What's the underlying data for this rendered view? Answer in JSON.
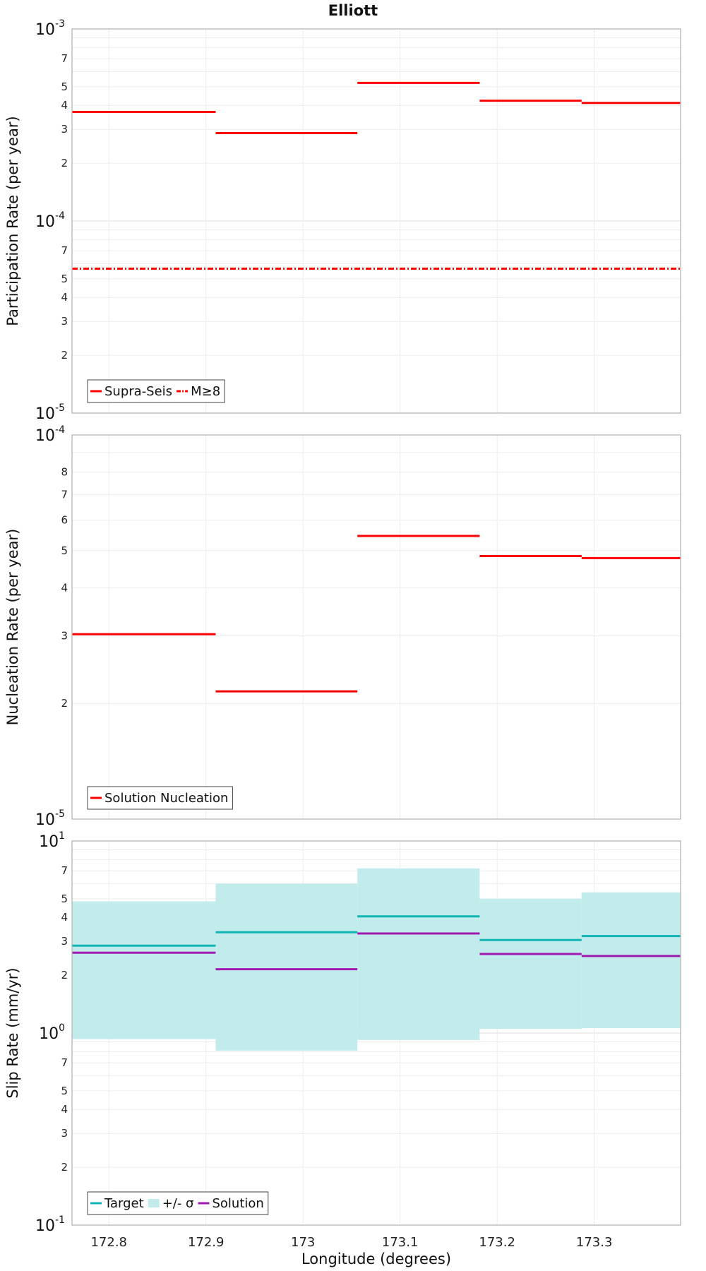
{
  "title": "Elliott",
  "xlabel": "Longitude (degrees)",
  "xlim": [
    172.762,
    173.389
  ],
  "xticks": [
    "172.8",
    "172.9",
    "173",
    "173.1",
    "173.2",
    "173.3"
  ],
  "chart_data": [
    {
      "type": "line",
      "ylabel": "Participation Rate (per year)",
      "yscale": "log",
      "ylim": [
        1e-05,
        0.001
      ],
      "grid": true,
      "legend_position": "bottom-left",
      "series": [
        {
          "name": "Supra-Seis",
          "color": "#ff0000",
          "style": "solid-step",
          "segments": [
            {
              "x": [
                172.762,
                172.91
              ],
              "y": 0.00037
            },
            {
              "x": [
                172.91,
                173.056
              ],
              "y": 0.000287
            },
            {
              "x": [
                173.056,
                173.182
              ],
              "y": 0.000524
            },
            {
              "x": [
                173.182,
                173.287
              ],
              "y": 0.000423
            },
            {
              "x": [
                173.287,
                173.389
              ],
              "y": 0.000412
            }
          ]
        },
        {
          "name": "M≥8",
          "color": "#ff0000",
          "style": "dash-dot",
          "segments": [
            {
              "x": [
                172.762,
                173.389
              ],
              "y": 5.65e-05
            }
          ]
        }
      ]
    },
    {
      "type": "line",
      "ylabel": "Nucleation Rate (per year)",
      "yscale": "log",
      "ylim": [
        1e-05,
        0.0001
      ],
      "grid": true,
      "legend_position": "bottom-left",
      "series": [
        {
          "name": "Solution Nucleation",
          "color": "#ff0000",
          "style": "solid-step",
          "segments": [
            {
              "x": [
                172.762,
                172.91
              ],
              "y": 3.03e-05
            },
            {
              "x": [
                172.91,
                173.056
              ],
              "y": 2.15e-05
            },
            {
              "x": [
                173.056,
                173.182
              ],
              "y": 5.46e-05
            },
            {
              "x": [
                173.182,
                173.287
              ],
              "y": 4.84e-05
            },
            {
              "x": [
                173.287,
                173.389
              ],
              "y": 4.78e-05
            }
          ]
        }
      ]
    },
    {
      "type": "line",
      "ylabel": "Slip Rate (mm/yr)",
      "yscale": "log",
      "ylim": [
        0.1,
        10
      ],
      "grid": true,
      "legend_position": "bottom-left",
      "band": {
        "name": "+/- σ",
        "color": "#c2ecec",
        "segments": [
          {
            "x": [
              172.762,
              172.91
            ],
            "lo": 0.93,
            "hi": 4.85
          },
          {
            "x": [
              172.91,
              173.056
            ],
            "lo": 0.81,
            "hi": 6.0
          },
          {
            "x": [
              173.056,
              173.182
            ],
            "lo": 0.92,
            "hi": 7.2
          },
          {
            "x": [
              173.182,
              173.287
            ],
            "lo": 1.05,
            "hi": 5.0
          },
          {
            "x": [
              173.287,
              173.389
            ],
            "lo": 1.06,
            "hi": 5.4
          }
        ]
      },
      "series": [
        {
          "name": "Target",
          "color": "#11b3b3",
          "style": "solid-step",
          "segments": [
            {
              "x": [
                172.762,
                172.91
              ],
              "y": 2.85
            },
            {
              "x": [
                172.91,
                173.056
              ],
              "y": 3.35
            },
            {
              "x": [
                173.056,
                173.182
              ],
              "y": 4.05
            },
            {
              "x": [
                173.182,
                173.287
              ],
              "y": 3.05
            },
            {
              "x": [
                173.287,
                173.389
              ],
              "y": 3.2
            }
          ]
        },
        {
          "name": "Solution",
          "color": "#a01ab0",
          "style": "solid-step",
          "segments": [
            {
              "x": [
                172.762,
                172.91
              ],
              "y": 2.62
            },
            {
              "x": [
                172.91,
                173.056
              ],
              "y": 2.15
            },
            {
              "x": [
                173.056,
                173.182
              ],
              "y": 3.3
            },
            {
              "x": [
                173.182,
                173.287
              ],
              "y": 2.58
            },
            {
              "x": [
                173.287,
                173.389
              ],
              "y": 2.52
            }
          ]
        }
      ]
    }
  ]
}
